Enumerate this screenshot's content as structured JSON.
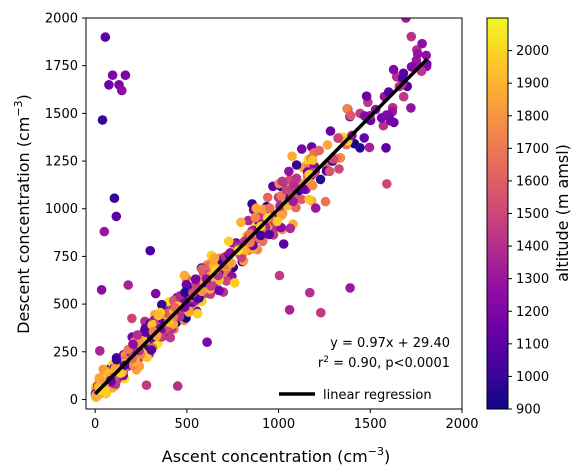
{
  "chart_data": {
    "type": "scatter",
    "title": "",
    "xlabel": "Ascent concentration (cm",
    "xlabel_sup": "−3",
    "xlabel_end": ")",
    "ylabel": "Descent concentration (cm",
    "ylabel_sup": "−3",
    "ylabel_end": ")",
    "xlim": [
      -50,
      2000
    ],
    "ylim": [
      -50,
      2000
    ],
    "xticks": [
      0,
      500,
      1000,
      1500,
      2000
    ],
    "yticks": [
      0,
      250,
      500,
      750,
      1000,
      1250,
      1500,
      1750,
      2000
    ],
    "colorbar": {
      "label": "altitude (m amsl)",
      "range": [
        900,
        2100
      ],
      "ticks": [
        900,
        1000,
        1100,
        1200,
        1300,
        1400,
        1500,
        1600,
        1700,
        1800,
        1900,
        2000
      ],
      "colormap": "plasma"
    },
    "regression": {
      "slope": 0.97,
      "intercept": 29.4,
      "x_range": [
        0,
        1810
      ],
      "equation_text": "y = 0.97x + 29.40",
      "r2_prefix": "r",
      "r2_sup": "2",
      "r2_rest": " = 0.90, p<0.0001",
      "legend_label": "linear regression",
      "color": "#000000"
    },
    "outliers": [
      {
        "x": 55,
        "y": 1900,
        "alt": 1100
      },
      {
        "x": 95,
        "y": 1700,
        "alt": 1200
      },
      {
        "x": 165,
        "y": 1700,
        "alt": 1200
      },
      {
        "x": 130,
        "y": 1650,
        "alt": 1200
      },
      {
        "x": 75,
        "y": 1650,
        "alt": 1150
      },
      {
        "x": 145,
        "y": 1620,
        "alt": 1250
      },
      {
        "x": 40,
        "y": 1465,
        "alt": 1000
      },
      {
        "x": 105,
        "y": 1055,
        "alt": 1000
      },
      {
        "x": 115,
        "y": 960,
        "alt": 1100
      },
      {
        "x": 50,
        "y": 880,
        "alt": 1300
      },
      {
        "x": 300,
        "y": 780,
        "alt": 1050
      },
      {
        "x": 35,
        "y": 575,
        "alt": 1250
      },
      {
        "x": 1390,
        "y": 585,
        "alt": 1300
      },
      {
        "x": 1590,
        "y": 1130,
        "alt": 1500
      },
      {
        "x": 1170,
        "y": 560,
        "alt": 1400
      },
      {
        "x": 1005,
        "y": 650,
        "alt": 1450
      },
      {
        "x": 1230,
        "y": 455,
        "alt": 1450
      },
      {
        "x": 330,
        "y": 555,
        "alt": 1200
      },
      {
        "x": 180,
        "y": 600,
        "alt": 1350
      },
      {
        "x": 200,
        "y": 425,
        "alt": 1500
      },
      {
        "x": 25,
        "y": 255,
        "alt": 1350
      },
      {
        "x": 280,
        "y": 75,
        "alt": 1450
      },
      {
        "x": 450,
        "y": 70,
        "alt": 1400
      },
      {
        "x": 1060,
        "y": 470,
        "alt": 1350
      },
      {
        "x": 610,
        "y": 300,
        "alt": 1200
      }
    ],
    "main_cloud": {
      "n": 700,
      "x_range": [
        0,
        1820
      ],
      "y_model": "0.97x + 29.4",
      "scatter_sd": 75
    },
    "legend_placement": "lower-right",
    "grid": false
  }
}
